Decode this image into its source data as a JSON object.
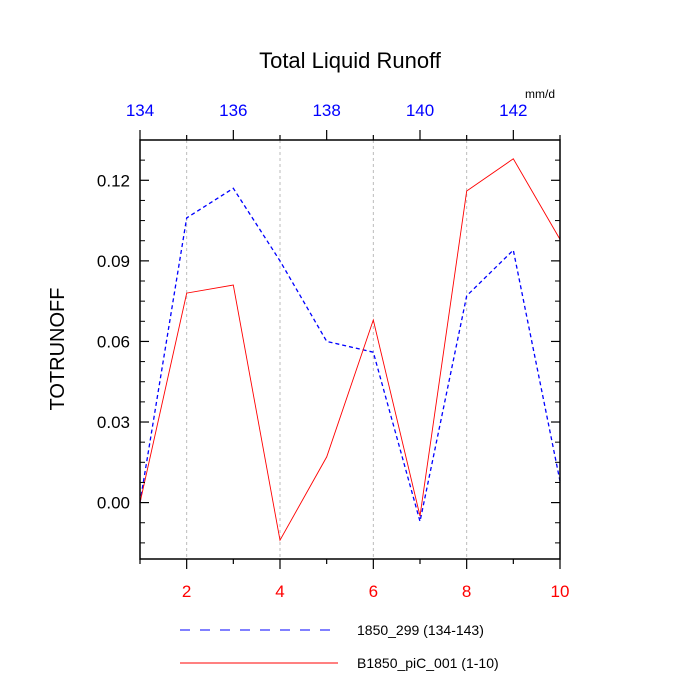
{
  "chart_data": {
    "type": "line",
    "title": "Total Liquid Runoff",
    "units": "mm/d",
    "ylabel": "TOTRUNOFF",
    "ylim": [
      -0.021,
      0.135
    ],
    "yticks": [
      "0.00",
      "0.03",
      "0.06",
      "0.09",
      "0.12"
    ],
    "yticks_values": [
      0.0,
      0.03,
      0.06,
      0.09,
      0.12
    ],
    "x_bottom": {
      "range": [
        1,
        10
      ],
      "ticks": [
        2,
        4,
        6,
        8,
        10
      ],
      "color": "#ff0000"
    },
    "x_top": {
      "range": [
        134,
        143
      ],
      "ticks": [
        134,
        136,
        138,
        140,
        142
      ],
      "color": "#0000ff"
    },
    "grid": "vertical dashed at bottom-axis ticks",
    "legend_position": "bottom",
    "series": [
      {
        "name": "1850_299 (134-143)",
        "axis": "top",
        "color": "#0000ff",
        "dash": "dashed",
        "x": [
          134,
          135,
          136,
          137,
          138,
          139,
          140,
          141,
          142,
          143
        ],
        "y": [
          0.0,
          0.106,
          0.117,
          0.09,
          0.06,
          0.056,
          -0.007,
          0.077,
          0.094,
          0.008
        ]
      },
      {
        "name": "B1850_piC_001 (1-10)",
        "axis": "bottom",
        "color": "#ff0000",
        "dash": "solid",
        "x": [
          1,
          2,
          3,
          4,
          5,
          6,
          7,
          8,
          9,
          10
        ],
        "y": [
          0.0,
          0.078,
          0.081,
          -0.014,
          0.017,
          0.068,
          -0.005,
          0.116,
          0.128,
          0.098
        ]
      }
    ]
  }
}
